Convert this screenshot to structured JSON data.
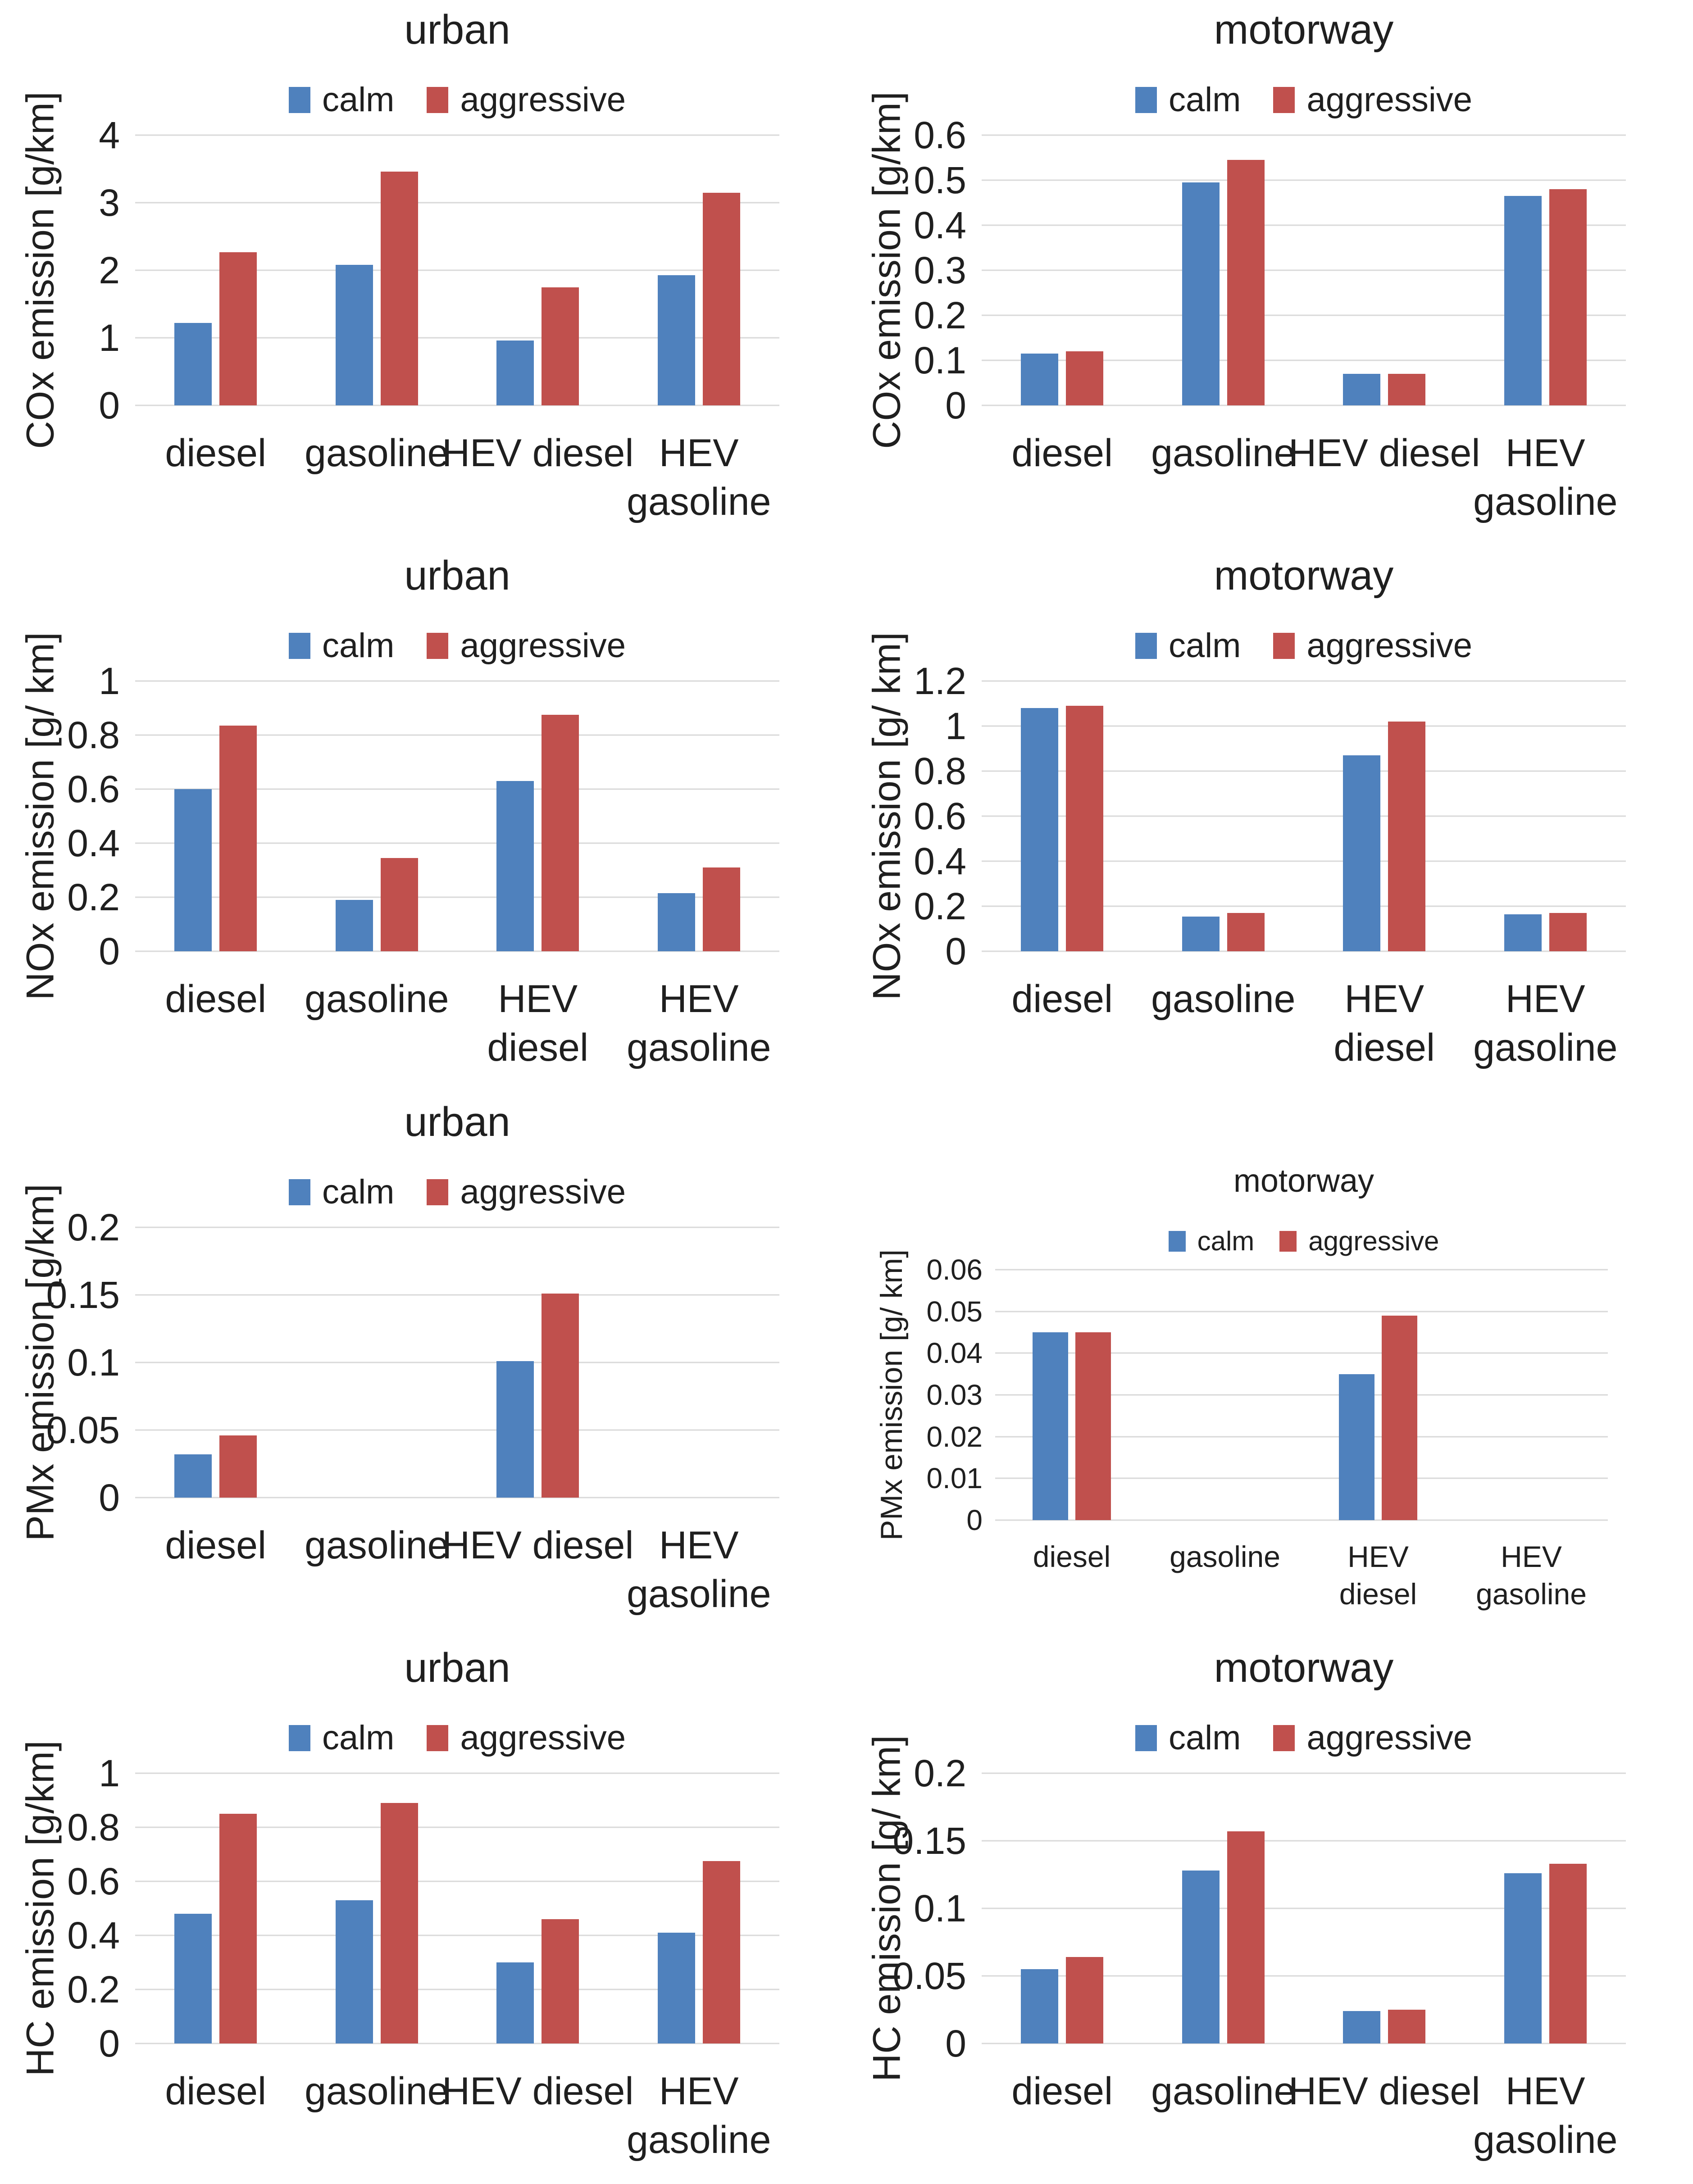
{
  "page": {
    "background_color": "#ffffff",
    "layout": {
      "rows": 4,
      "cols": 2
    },
    "row_headers": [
      "COx",
      "NOx",
      "PMx",
      "HC"
    ],
    "column_titles": [
      "urban",
      "motorway"
    ]
  },
  "colors": {
    "calm": "#4F81BD",
    "aggressive": "#C0504D",
    "gridline": "#D9D9D9",
    "text": "#1F1F1F"
  },
  "legend": {
    "items": [
      "calm",
      "aggressive"
    ]
  },
  "chart_data": [
    {
      "id": "cox-urban",
      "type": "bar",
      "title": "urban",
      "xlabel": "",
      "ylabel": "COx emission [g/km]",
      "categories": [
        "diesel",
        "gasoline",
        "HEV diesel",
        "HEV\ngasoline"
      ],
      "series": [
        {
          "name": "calm",
          "color": "#4F81BD",
          "values": [
            1.22,
            2.08,
            0.96,
            1.93
          ]
        },
        {
          "name": "aggressive",
          "color": "#C0504D",
          "values": [
            2.27,
            3.46,
            1.75,
            3.15
          ]
        }
      ],
      "ylim": [
        0,
        4
      ],
      "ytick_values": [
        0,
        1,
        2,
        3,
        4
      ],
      "ytick_labels": [
        "0",
        "1",
        "2",
        "3",
        "4"
      ],
      "grid": true,
      "legend_position": "top",
      "size": "normal"
    },
    {
      "id": "cox-motorway",
      "type": "bar",
      "title": "motorway",
      "xlabel": "",
      "ylabel": "COx emission [g/km]",
      "categories": [
        "diesel",
        "gasoline",
        "HEV diesel",
        "HEV\ngasoline"
      ],
      "series": [
        {
          "name": "calm",
          "color": "#4F81BD",
          "values": [
            0.115,
            0.495,
            0.07,
            0.465
          ]
        },
        {
          "name": "aggressive",
          "color": "#C0504D",
          "values": [
            0.12,
            0.545,
            0.07,
            0.48
          ]
        }
      ],
      "ylim": [
        0,
        0.6
      ],
      "ytick_values": [
        0,
        0.1,
        0.2,
        0.3,
        0.4,
        0.5,
        0.6
      ],
      "ytick_labels": [
        "0",
        "0.1",
        "0.2",
        "0.3",
        "0.4",
        "0.5",
        "0.6"
      ],
      "grid": true,
      "legend_position": "top",
      "size": "normal"
    },
    {
      "id": "nox-urban",
      "type": "bar",
      "title": "urban",
      "xlabel": "",
      "ylabel": "NOx emission [g/ km]",
      "categories": [
        "diesel",
        "gasoline",
        "HEV\ndiesel",
        "HEV\ngasoline"
      ],
      "series": [
        {
          "name": "calm",
          "color": "#4F81BD",
          "values": [
            0.6,
            0.19,
            0.63,
            0.215
          ]
        },
        {
          "name": "aggressive",
          "color": "#C0504D",
          "values": [
            0.835,
            0.345,
            0.875,
            0.31
          ]
        }
      ],
      "ylim": [
        0,
        1
      ],
      "ytick_values": [
        0,
        0.2,
        0.4,
        0.6,
        0.8,
        1
      ],
      "ytick_labels": [
        "0",
        "0.2",
        "0.4",
        "0.6",
        "0.8",
        "1"
      ],
      "grid": true,
      "legend_position": "top",
      "size": "normal"
    },
    {
      "id": "nox-motorway",
      "type": "bar",
      "title": "motorway",
      "xlabel": "",
      "ylabel": "NOx emission [g/ km]",
      "categories": [
        "diesel",
        "gasoline",
        "HEV\ndiesel",
        "HEV\ngasoline"
      ],
      "series": [
        {
          "name": "calm",
          "color": "#4F81BD",
          "values": [
            1.08,
            0.155,
            0.87,
            0.165
          ]
        },
        {
          "name": "aggressive",
          "color": "#C0504D",
          "values": [
            1.09,
            0.17,
            1.02,
            0.17
          ]
        }
      ],
      "ylim": [
        0,
        1.2
      ],
      "ytick_values": [
        0,
        0.2,
        0.4,
        0.6,
        0.8,
        1,
        1.2
      ],
      "ytick_labels": [
        "0",
        "0.2",
        "0.4",
        "0.6",
        "0.8",
        "1",
        "1.2"
      ],
      "grid": true,
      "legend_position": "top",
      "size": "normal"
    },
    {
      "id": "pmx-urban",
      "type": "bar",
      "title": "urban",
      "xlabel": "",
      "ylabel": "PMx emission [g/km]",
      "categories": [
        "diesel",
        "gasoline",
        "HEV diesel",
        "HEV\ngasoline"
      ],
      "series": [
        {
          "name": "calm",
          "color": "#4F81BD",
          "values": [
            0.032,
            0,
            0.101,
            0
          ]
        },
        {
          "name": "aggressive",
          "color": "#C0504D",
          "values": [
            0.046,
            0,
            0.151,
            0
          ]
        }
      ],
      "ylim": [
        0,
        0.2
      ],
      "ytick_values": [
        0,
        0.05,
        0.1,
        0.15,
        0.2
      ],
      "ytick_labels": [
        "0",
        "0.05",
        "0.1",
        "0.15",
        "0.2"
      ],
      "grid": true,
      "legend_position": "top",
      "size": "normal"
    },
    {
      "id": "pmx-motorway",
      "type": "bar",
      "title": "motorway",
      "xlabel": "",
      "ylabel": "PMx emission [g/ km]",
      "categories": [
        "diesel",
        "gasoline",
        "HEV\ndiesel",
        "HEV\ngasoline"
      ],
      "series": [
        {
          "name": "calm",
          "color": "#4F81BD",
          "values": [
            0.045,
            0,
            0.035,
            0
          ]
        },
        {
          "name": "aggressive",
          "color": "#C0504D",
          "values": [
            0.045,
            0,
            0.049,
            0
          ]
        }
      ],
      "ylim": [
        0,
        0.06
      ],
      "ytick_values": [
        0,
        0.01,
        0.02,
        0.03,
        0.04,
        0.05,
        0.06
      ],
      "ytick_labels": [
        "0",
        "0.01",
        "0.02",
        "0.03",
        "0.04",
        "0.05",
        "0.06"
      ],
      "grid": true,
      "legend_position": "top",
      "size": "small"
    },
    {
      "id": "hc-urban",
      "type": "bar",
      "title": "urban",
      "xlabel": "",
      "ylabel": "HC emission [g/km]",
      "categories": [
        "diesel",
        "gasoline",
        "HEV diesel",
        "HEV\ngasoline"
      ],
      "series": [
        {
          "name": "calm",
          "color": "#4F81BD",
          "values": [
            0.48,
            0.53,
            0.3,
            0.41
          ]
        },
        {
          "name": "aggressive",
          "color": "#C0504D",
          "values": [
            0.85,
            0.89,
            0.46,
            0.675
          ]
        }
      ],
      "ylim": [
        0,
        1
      ],
      "ytick_values": [
        0,
        0.2,
        0.4,
        0.6,
        0.8,
        1
      ],
      "ytick_labels": [
        "0",
        "0.2",
        "0.4",
        "0.6",
        "0.8",
        "1"
      ],
      "grid": true,
      "legend_position": "top",
      "size": "normal"
    },
    {
      "id": "hc-motorway",
      "type": "bar",
      "title": "motorway",
      "xlabel": "",
      "ylabel": "HC emission [g/ km]",
      "categories": [
        "diesel",
        "gasoline",
        "HEV diesel",
        "HEV\ngasoline"
      ],
      "series": [
        {
          "name": "calm",
          "color": "#4F81BD",
          "values": [
            0.055,
            0.128,
            0.024,
            0.126
          ]
        },
        {
          "name": "aggressive",
          "color": "#C0504D",
          "values": [
            0.064,
            0.157,
            0.025,
            0.133
          ]
        }
      ],
      "ylim": [
        0,
        0.2
      ],
      "ytick_values": [
        0,
        0.05,
        0.1,
        0.15,
        0.2
      ],
      "ytick_labels": [
        "0",
        "0.05",
        "0.1",
        "0.15",
        "0.2"
      ],
      "grid": true,
      "legend_position": "top",
      "size": "normal"
    }
  ]
}
